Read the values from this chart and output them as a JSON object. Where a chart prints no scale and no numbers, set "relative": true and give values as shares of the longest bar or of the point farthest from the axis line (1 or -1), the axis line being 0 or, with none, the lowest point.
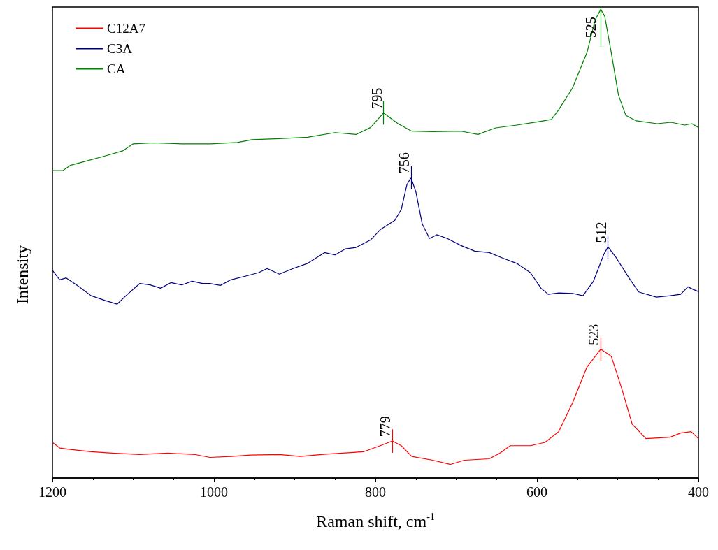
{
  "chart_data": {
    "type": "line",
    "relative": true,
    "xlabel": "Raman shift, cm$^{-1}$",
    "ylabel": "Intensity",
    "xlim": [
      1200,
      400
    ],
    "xticks": [
      1200,
      1000,
      800,
      600,
      400
    ],
    "legend": "top left",
    "grid": false,
    "marker": "none",
    "line_style": "solid",
    "series": [
      {
        "name": "C12A7",
        "color": "#ff0000",
        "x": [
          1200,
          1191,
          1178,
          1152,
          1126,
          1092,
          1057,
          1023,
          1005,
          979,
          954,
          919,
          893,
          867,
          841,
          815,
          794,
          779,
          768,
          755,
          729,
          707,
          690,
          659,
          646,
          633,
          608,
          590,
          573,
          556,
          538,
          521,
          508,
          495,
          482,
          465,
          435,
          422,
          409,
          400
        ],
        "values": [
          0.076,
          0.064,
          0.061,
          0.056,
          0.053,
          0.05,
          0.053,
          0.05,
          0.044,
          0.046,
          0.049,
          0.05,
          0.046,
          0.05,
          0.053,
          0.056,
          0.069,
          0.079,
          0.069,
          0.046,
          0.038,
          0.029,
          0.038,
          0.041,
          0.053,
          0.069,
          0.069,
          0.076,
          0.099,
          0.16,
          0.237,
          0.275,
          0.26,
          0.191,
          0.115,
          0.084,
          0.087,
          0.096,
          0.099,
          0.084
        ]
      },
      {
        "name": "C3A",
        "color": "#000080",
        "x": [
          1200,
          1191,
          1183,
          1170,
          1152,
          1135,
          1120,
          1109,
          1092,
          1079,
          1066,
          1053,
          1040,
          1027,
          1014,
          1005,
          992,
          979,
          958,
          945,
          934,
          919,
          902,
          884,
          863,
          850,
          837,
          824,
          806,
          794,
          776,
          768,
          761,
          756,
          750,
          742,
          733,
          724,
          711,
          694,
          677,
          659,
          642,
          625,
          608,
          595,
          586,
          573,
          556,
          543,
          530,
          517,
          512,
          503,
          486,
          474,
          452,
          435,
          422,
          413,
          406,
          400
        ],
        "values": [
          0.443,
          0.423,
          0.427,
          0.412,
          0.389,
          0.379,
          0.371,
          0.389,
          0.415,
          0.412,
          0.405,
          0.417,
          0.412,
          0.42,
          0.415,
          0.415,
          0.411,
          0.423,
          0.432,
          0.438,
          0.447,
          0.435,
          0.447,
          0.458,
          0.481,
          0.476,
          0.489,
          0.492,
          0.508,
          0.53,
          0.55,
          0.573,
          0.626,
          0.641,
          0.611,
          0.542,
          0.511,
          0.519,
          0.511,
          0.496,
          0.484,
          0.481,
          0.469,
          0.458,
          0.438,
          0.405,
          0.392,
          0.395,
          0.394,
          0.389,
          0.42,
          0.478,
          0.493,
          0.473,
          0.427,
          0.397,
          0.386,
          0.389,
          0.392,
          0.408,
          0.402,
          0.398
        ]
      },
      {
        "name": "CA",
        "color": "#008000",
        "x": [
          1200,
          1187,
          1178,
          1161,
          1135,
          1113,
          1100,
          1075,
          1040,
          1005,
          971,
          953,
          919,
          884,
          850,
          824,
          806,
          790,
          772,
          755,
          729,
          694,
          673,
          651,
          625,
          599,
          582,
          573,
          556,
          538,
          528,
          521,
          516,
          508,
          499,
          490,
          477,
          451,
          434,
          417,
          408,
          400
        ],
        "values": [
          0.656,
          0.656,
          0.667,
          0.675,
          0.687,
          0.698,
          0.713,
          0.715,
          0.713,
          0.713,
          0.716,
          0.722,
          0.724,
          0.727,
          0.737,
          0.733,
          0.748,
          0.779,
          0.756,
          0.74,
          0.739,
          0.74,
          0.733,
          0.747,
          0.753,
          0.76,
          0.765,
          0.786,
          0.832,
          0.908,
          0.977,
          1.0,
          0.985,
          0.908,
          0.817,
          0.774,
          0.762,
          0.756,
          0.759,
          0.753,
          0.756,
          0.748
        ]
      }
    ],
    "annotations": [
      {
        "text": "779",
        "x": 779,
        "y": 0.079
      },
      {
        "text": "523",
        "x": 521,
        "y": 0.275
      },
      {
        "text": "756",
        "x": 756,
        "y": 0.641
      },
      {
        "text": "512",
        "x": 512,
        "y": 0.493
      },
      {
        "text": "795",
        "x": 790,
        "y": 0.779
      },
      {
        "text": "525",
        "x": 521,
        "y": 1.0
      }
    ]
  }
}
